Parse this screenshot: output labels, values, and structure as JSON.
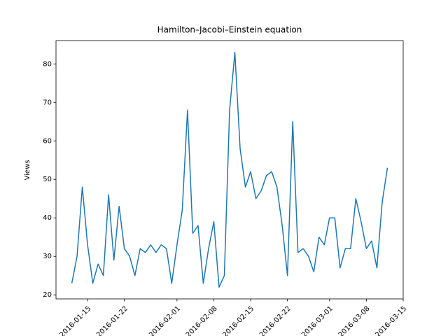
{
  "chart_data": {
    "type": "line",
    "title": "Hamilton–Jacobi–Einstein equation",
    "ylabel": "Views",
    "x": [
      "2016-01-12",
      "2016-01-13",
      "2016-01-14",
      "2016-01-15",
      "2016-01-16",
      "2016-01-17",
      "2016-01-18",
      "2016-01-19",
      "2016-01-20",
      "2016-01-21",
      "2016-01-22",
      "2016-01-23",
      "2016-01-24",
      "2016-01-25",
      "2016-01-26",
      "2016-01-27",
      "2016-01-28",
      "2016-01-29",
      "2016-01-30",
      "2016-01-31",
      "2016-02-01",
      "2016-02-02",
      "2016-02-03",
      "2016-02-04",
      "2016-02-05",
      "2016-02-06",
      "2016-02-07",
      "2016-02-08",
      "2016-02-09",
      "2016-02-10",
      "2016-02-11",
      "2016-02-12",
      "2016-02-13",
      "2016-02-14",
      "2016-02-15",
      "2016-02-16",
      "2016-02-17",
      "2016-02-18",
      "2016-02-19",
      "2016-02-20",
      "2016-02-21",
      "2016-02-22",
      "2016-02-23",
      "2016-02-24",
      "2016-02-25",
      "2016-02-26",
      "2016-02-27",
      "2016-02-28",
      "2016-02-29",
      "2016-03-01",
      "2016-03-02",
      "2016-03-03",
      "2016-03-04",
      "2016-03-05",
      "2016-03-06",
      "2016-03-07",
      "2016-03-08",
      "2016-03-09",
      "2016-03-10",
      "2016-03-11",
      "2016-03-12"
    ],
    "values": [
      23,
      30,
      48,
      33,
      23,
      28,
      25,
      46,
      29,
      43,
      32,
      30,
      25,
      32,
      31,
      33,
      31,
      33,
      32,
      23,
      33,
      42,
      68,
      36,
      38,
      23,
      32,
      39,
      22,
      25,
      68,
      83,
      58,
      48,
      52,
      45,
      47,
      51,
      52,
      48,
      38,
      25,
      65,
      31,
      32,
      30,
      26,
      35,
      33,
      40,
      40,
      27,
      32,
      32,
      45,
      39,
      32,
      34,
      27,
      44,
      53
    ],
    "color": "#1f77b4",
    "xlim": [
      "2016-01-09",
      "2016-03-15"
    ],
    "xticks": [
      "2016-01-15",
      "2016-01-22",
      "2016-02-01",
      "2016-02-08",
      "2016-02-15",
      "2016-02-22",
      "2016-03-01",
      "2016-03-08",
      "2016-03-15"
    ],
    "ylim": [
      18.95,
      86.05
    ],
    "yticks": [
      20,
      30,
      40,
      50,
      60,
      70,
      80
    ],
    "grid": false
  }
}
